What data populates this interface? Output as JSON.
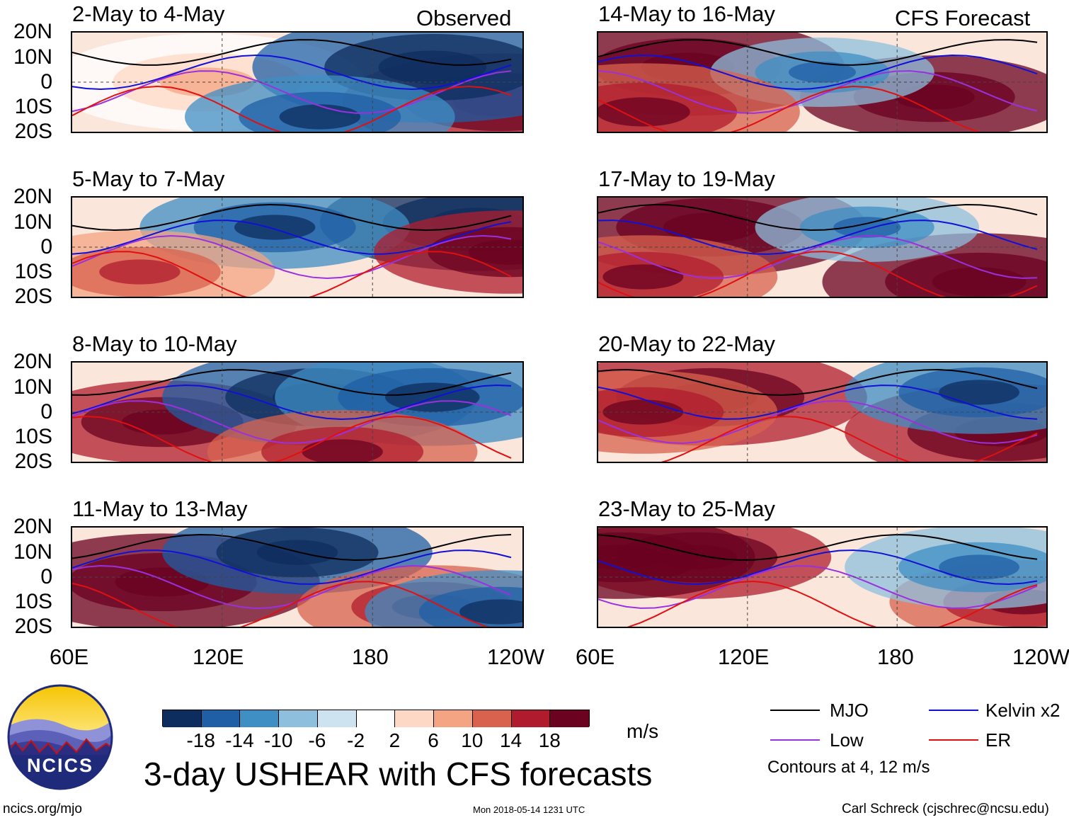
{
  "headers": {
    "left": "Observed",
    "right": "CFS Forecast"
  },
  "panels_left": [
    {
      "title": "2-May to 4-May"
    },
    {
      "title": "5-May to 7-May"
    },
    {
      "title": "8-May to 10-May"
    },
    {
      "title": "11-May to 13-May"
    }
  ],
  "panels_right": [
    {
      "title": "14-May to 16-May"
    },
    {
      "title": "17-May to 19-May"
    },
    {
      "title": "20-May to 22-May"
    },
    {
      "title": "23-May to 25-May"
    }
  ],
  "lat_labels": [
    "20N",
    "10N",
    "0",
    "10S",
    "20S"
  ],
  "lon_labels": [
    "60E",
    "120E",
    "180",
    "120W"
  ],
  "colorbar": {
    "colors": [
      "#0d2d5e",
      "#1f5fa6",
      "#3f8ec4",
      "#8ebfdc",
      "#cde3ef",
      "#ffffff",
      "#fdd8c4",
      "#f4a482",
      "#d8624e",
      "#b01c2e",
      "#6a0220"
    ],
    "labels": [
      "-18",
      "-14",
      "-10",
      "-6",
      "-2",
      "2",
      "6",
      "10",
      "14",
      "18"
    ],
    "unit": "m/s"
  },
  "legend": {
    "items": [
      {
        "label": "MJO",
        "color": "#000000"
      },
      {
        "label": "Kelvin x2",
        "color": "#1010d8"
      },
      {
        "label": "Low",
        "color": "#9b30e0"
      },
      {
        "label": "ER",
        "color": "#e01010"
      }
    ],
    "note": "Contours at 4, 12 m/s"
  },
  "main_title": "3-day USHEAR with CFS forecasts",
  "logo_text": "NCICS",
  "footer": {
    "left": "ncics.org/mjo",
    "center": "Mon 2018-05-14 1231 UTC",
    "right": "Carl Schreck (cjschrec@ncsu.edu)"
  }
}
